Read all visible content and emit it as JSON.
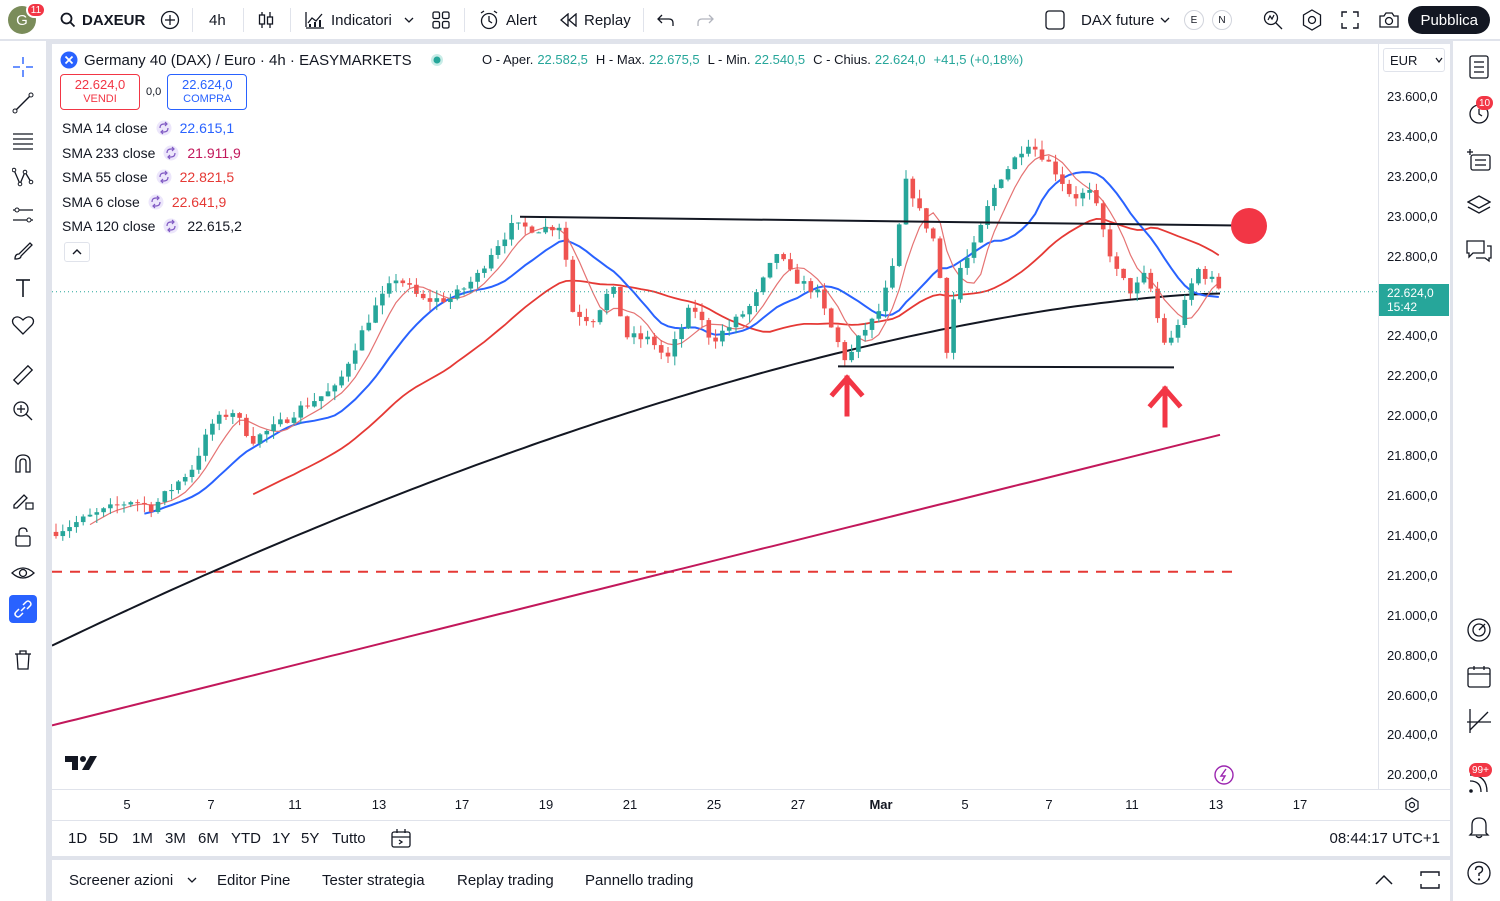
{
  "topbar": {
    "avatar_letter": "G",
    "avatar_badge": "11",
    "symbol": "DAXEUR",
    "interval": "4h",
    "indicators_label": "Indicatori",
    "alert_label": "Alert",
    "replay_label": "Replay",
    "compare_symbol": "DAX future",
    "pill_e": "E",
    "pill_n": "N",
    "publish_label": "Pubblica"
  },
  "legend": {
    "title": "Germany 40 (DAX) / Euro · 4h · EASYMARKETS",
    "open_label": "O - Aper.",
    "open": "22.582,5",
    "high_label": "H - Max.",
    "high": "22.675,5",
    "low_label": "L - Min.",
    "low": "22.540,5",
    "close_label": "C - Chius.",
    "close": "22.624,0",
    "change": "+41,5 (+0,18%)",
    "sell_price": "22.624,0",
    "sell_label": "VENDI",
    "spread": "0,0",
    "buy_price": "22.624,0",
    "buy_label": "COMPRA"
  },
  "indicators": [
    {
      "name": "SMA 14 close",
      "value": "22.615,1",
      "color": "#2962ff"
    },
    {
      "name": "SMA 233 close",
      "value": "21.911,9",
      "color": "#c2185b"
    },
    {
      "name": "SMA 55 close",
      "value": "22.821,5",
      "color": "#e53935"
    },
    {
      "name": "SMA 6 close",
      "value": "22.641,9",
      "color": "#e53935"
    },
    {
      "name": "SMA 120 close",
      "value": "22.615,2",
      "color": "#131722"
    }
  ],
  "price_axis": {
    "currency": "EUR",
    "ticks": [
      "23.600,0",
      "23.400,0",
      "23.200,0",
      "23.000,0",
      "22.800,0",
      "22.400,0",
      "22.200,0",
      "22.000,0",
      "21.800,0",
      "21.600,0",
      "21.400,0",
      "21.200,0",
      "21.000,0",
      "20.800,0",
      "20.600,0",
      "20.400,0",
      "20.200,0"
    ],
    "last_price": "22.624,0",
    "countdown": "15:42"
  },
  "time_axis": {
    "ticks": [
      "5",
      "7",
      "11",
      "13",
      "17",
      "19",
      "21",
      "25",
      "27",
      "Mar",
      "5",
      "7",
      "11",
      "13",
      "17"
    ]
  },
  "ranges": {
    "items": [
      "1D",
      "5D",
      "1M",
      "3M",
      "6M",
      "YTD",
      "1Y",
      "5Y",
      "Tutto"
    ],
    "clock": "08:44:17 UTC+1"
  },
  "bottom_tabs": [
    "Screener azioni",
    "Editor Pine",
    "Tester strategia",
    "Replay trading",
    "Pannello trading"
  ],
  "right_badges": {
    "alerts": "10",
    "notifications": "99+"
  },
  "colors": {
    "up": "#26a69a",
    "down": "#ef5350",
    "accent": "#2962ff",
    "marker": "#f23645"
  },
  "chart_data": {
    "type": "candlestick",
    "timeframe": "4h",
    "y_range": [
      20100,
      23700
    ],
    "x_ticks": [
      "5",
      "7",
      "11",
      "13",
      "17",
      "19",
      "21",
      "25",
      "27",
      "Mar",
      "5",
      "7",
      "11",
      "13",
      "17"
    ],
    "ohlc_last": {
      "open": 22582.5,
      "high": 22675.5,
      "low": 22540.5,
      "close": 22624.0
    },
    "series": [
      {
        "name": "SMA 14 close",
        "last": 22615.1
      },
      {
        "name": "SMA 233 close",
        "last": 21911.9
      },
      {
        "name": "SMA 55 close",
        "last": 22821.5
      },
      {
        "name": "SMA 6 close",
        "last": 22641.9
      },
      {
        "name": "SMA 120 close",
        "last": 22615.2
      }
    ],
    "annotations": [
      {
        "type": "resistance_line",
        "price": 22960
      },
      {
        "type": "support_line",
        "price": 22250
      },
      {
        "type": "horizontal_dashed",
        "price": 21220
      },
      {
        "type": "arrow_up",
        "at": "Feb 28"
      },
      {
        "type": "arrow_up",
        "at": "Mar 12"
      },
      {
        "type": "circle_marker",
        "price": 22960
      }
    ]
  }
}
